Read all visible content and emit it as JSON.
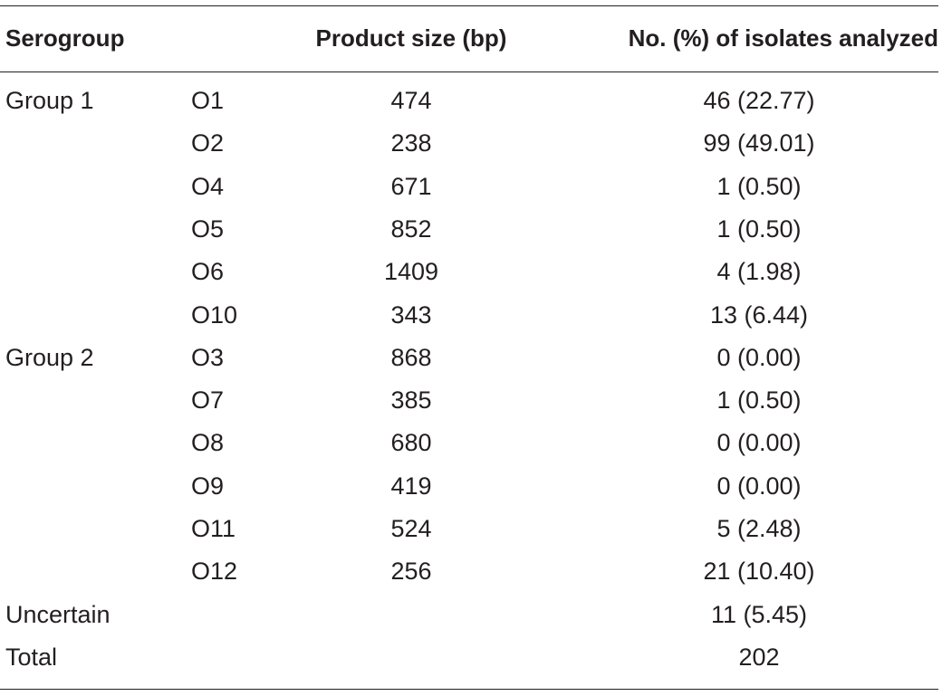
{
  "table": {
    "headers": {
      "serogroup": "Serogroup",
      "product_size": "Product size (bp)",
      "isolates": "No. (%) of isolates analyzed"
    },
    "rows": [
      {
        "group": "Group 1",
        "serogroup": "O1",
        "size": "474",
        "isolates": "46 (22.77)"
      },
      {
        "group": "",
        "serogroup": "O2",
        "size": "238",
        "isolates": "99 (49.01)"
      },
      {
        "group": "",
        "serogroup": "O4",
        "size": "671",
        "isolates": "1 (0.50)"
      },
      {
        "group": "",
        "serogroup": "O5",
        "size": "852",
        "isolates": "1 (0.50)"
      },
      {
        "group": "",
        "serogroup": "O6",
        "size": "1409",
        "isolates": "4 (1.98)"
      },
      {
        "group": "",
        "serogroup": "O10",
        "size": "343",
        "isolates": "13 (6.44)"
      },
      {
        "group": "Group 2",
        "serogroup": "O3",
        "size": "868",
        "isolates": "0 (0.00)"
      },
      {
        "group": "",
        "serogroup": "O7",
        "size": "385",
        "isolates": "1 (0.50)"
      },
      {
        "group": "",
        "serogroup": "O8",
        "size": "680",
        "isolates": "0 (0.00)"
      },
      {
        "group": "",
        "serogroup": "O9",
        "size": "419",
        "isolates": "0 (0.00)"
      },
      {
        "group": "",
        "serogroup": "O11",
        "size": "524",
        "isolates": "5 (2.48)"
      },
      {
        "group": "",
        "serogroup": "O12",
        "size": "256",
        "isolates": "21 (10.40)"
      },
      {
        "group": "Uncertain",
        "serogroup": "",
        "size": "",
        "isolates": "11 (5.45)"
      },
      {
        "group": "Total",
        "serogroup": "",
        "size": "",
        "isolates": "202"
      }
    ]
  }
}
